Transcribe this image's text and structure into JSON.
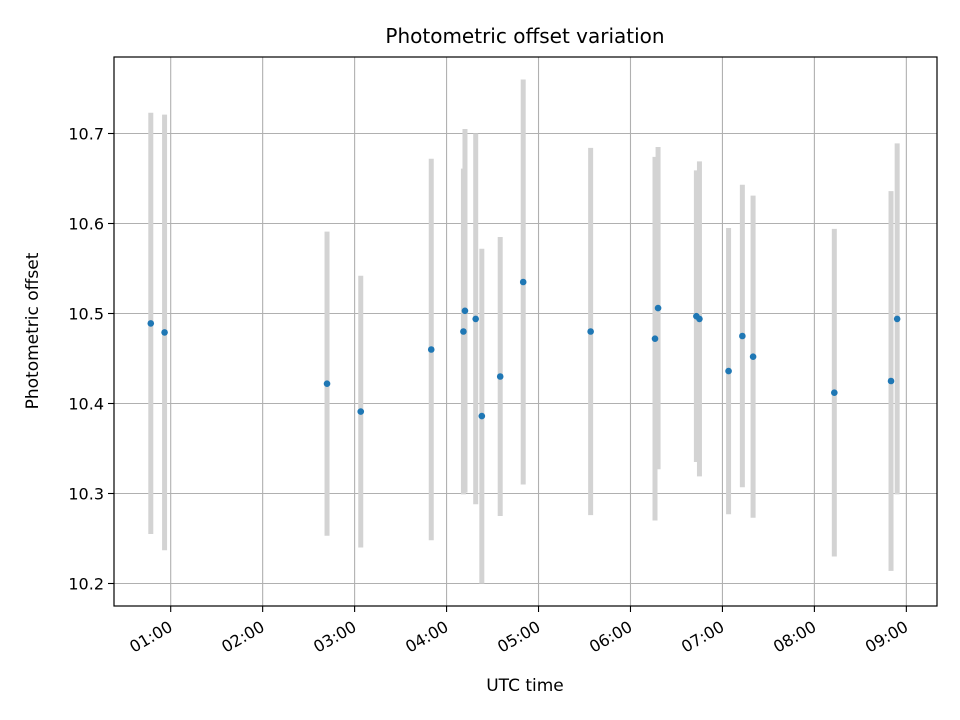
{
  "chart_data": {
    "type": "scatter",
    "title": "Photometric offset variation",
    "xlabel": "UTC time",
    "ylabel": "Photometric offset",
    "x_ticks": [
      "01:00",
      "02:00",
      "03:00",
      "04:00",
      "05:00",
      "06:00",
      "07:00",
      "08:00",
      "09:00"
    ],
    "y_ticks": [
      "10.2",
      "10.3",
      "10.4",
      "10.5",
      "10.6",
      "10.7"
    ],
    "xlim": [
      "00:23",
      "09:20"
    ],
    "ylim": [
      10.175,
      10.785
    ],
    "grid": true,
    "colors": {
      "point": "#1f77b4",
      "errorbar": "#d3d3d3",
      "grid": "#b0b0b0"
    },
    "points": [
      {
        "time": "00:47",
        "y": 10.489,
        "err": 0.234
      },
      {
        "time": "00:56",
        "y": 10.479,
        "err": 0.242
      },
      {
        "time": "02:42",
        "y": 10.422,
        "err": 0.169
      },
      {
        "time": "03:04",
        "y": 10.391,
        "err": 0.151
      },
      {
        "time": "03:50",
        "y": 10.46,
        "err": 0.212
      },
      {
        "time": "04:11",
        "y": 10.48,
        "err": 0.181
      },
      {
        "time": "04:12",
        "y": 10.503,
        "err": 0.202
      },
      {
        "time": "04:19",
        "y": 10.494,
        "err": 0.206
      },
      {
        "time": "04:23",
        "y": 10.386,
        "err": 0.186
      },
      {
        "time": "04:35",
        "y": 10.43,
        "err": 0.155
      },
      {
        "time": "04:50",
        "y": 10.535,
        "err": 0.225
      },
      {
        "time": "05:34",
        "y": 10.48,
        "err": 0.204
      },
      {
        "time": "06:16",
        "y": 10.472,
        "err": 0.202
      },
      {
        "time": "06:18",
        "y": 10.506,
        "err": 0.179
      },
      {
        "time": "06:43",
        "y": 10.497,
        "err": 0.162
      },
      {
        "time": "06:45",
        "y": 10.494,
        "err": 0.175
      },
      {
        "time": "07:04",
        "y": 10.436,
        "err": 0.159
      },
      {
        "time": "07:13",
        "y": 10.475,
        "err": 0.168
      },
      {
        "time": "07:20",
        "y": 10.452,
        "err": 0.179
      },
      {
        "time": "08:13",
        "y": 10.412,
        "err": 0.182
      },
      {
        "time": "08:50",
        "y": 10.425,
        "err": 0.211
      },
      {
        "time": "08:54",
        "y": 10.494,
        "err": 0.195
      }
    ]
  }
}
